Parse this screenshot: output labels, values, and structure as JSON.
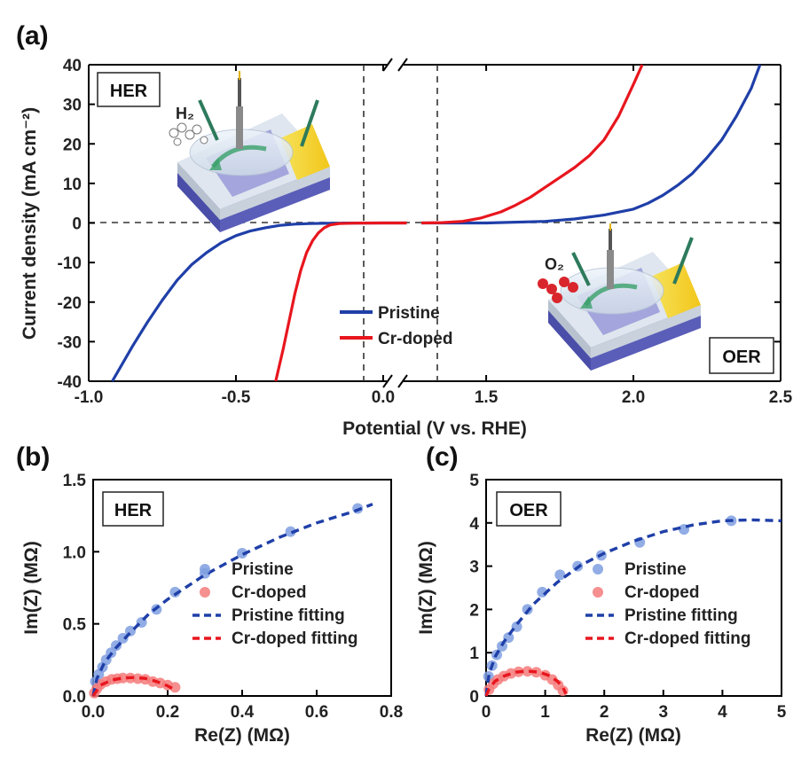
{
  "chart_data": [
    {
      "panel": "(a)",
      "type": "line",
      "xlabel": "Potential (V vs. RHE)",
      "ylabel": "Current density (mA cm⁻²)",
      "xlim": [
        -1.0,
        2.5
      ],
      "ylim": [
        -40,
        40
      ],
      "x_break": [
        0.1,
        1.25
      ],
      "xticks": [
        -1.0,
        -0.5,
        0.0,
        1.5,
        2.0,
        2.5
      ],
      "yticks": [
        -40,
        -30,
        -20,
        -10,
        0,
        10,
        20,
        30,
        40
      ],
      "xtick_labels": [
        "-1.0",
        "-0.5",
        "0.0",
        "1.5",
        "2.0",
        "2.5"
      ],
      "ytick_labels": [
        "-40",
        "-30",
        "-20",
        "-10",
        "0",
        "10",
        "20",
        "30",
        "40"
      ],
      "boxes": [
        "HER",
        "OER"
      ],
      "insets": [
        {
          "molecule": "H₂"
        },
        {
          "molecule": "O₂"
        }
      ],
      "legend": {
        "position": "bottom-center"
      },
      "series": [
        {
          "name": "Pristine",
          "color": "#1f3fa8",
          "segments": [
            {
              "x": [
                -0.92,
                -0.85,
                -0.8,
                -0.75,
                -0.7,
                -0.65,
                -0.6,
                -0.55,
                -0.5,
                -0.45,
                -0.4,
                -0.35,
                -0.3,
                -0.25,
                -0.2,
                -0.15,
                -0.1,
                0.0,
                0.08
              ],
              "y": [
                -40,
                -31,
                -25,
                -19.5,
                -14.5,
                -10.5,
                -7.5,
                -5,
                -3.2,
                -2,
                -1.2,
                -0.6,
                -0.3,
                -0.15,
                -0.08,
                -0.04,
                -0.02,
                0,
                0
              ]
            },
            {
              "x": [
                1.28,
                1.5,
                1.7,
                1.8,
                1.9,
                2.0,
                2.05,
                2.1,
                2.15,
                2.2,
                2.25,
                2.3,
                2.35,
                2.4,
                2.43
              ],
              "y": [
                0,
                0,
                0.4,
                1,
                2,
                3.5,
                5,
                7,
                9.5,
                12.5,
                16.5,
                21,
                27,
                34,
                40
              ]
            }
          ]
        },
        {
          "name": "Cr-doped",
          "color": "#e8161e",
          "segments": [
            {
              "x": [
                -0.365,
                -0.34,
                -0.32,
                -0.3,
                -0.28,
                -0.26,
                -0.24,
                -0.22,
                -0.2,
                -0.18,
                -0.15,
                -0.1,
                0.0,
                0.08
              ],
              "y": [
                -40,
                -32,
                -25,
                -18,
                -12,
                -7.5,
                -4.5,
                -2.5,
                -1.2,
                -0.5,
                -0.15,
                -0.05,
                0,
                0
              ]
            },
            {
              "x": [
                1.28,
                1.35,
                1.42,
                1.48,
                1.55,
                1.6,
                1.65,
                1.7,
                1.75,
                1.8,
                1.85,
                1.9,
                1.95,
                2.0,
                2.03
              ],
              "y": [
                0,
                0.1,
                0.4,
                1.2,
                2.8,
                4.5,
                6.5,
                9,
                11.5,
                14,
                17,
                21,
                27,
                35,
                40
              ]
            }
          ]
        }
      ]
    },
    {
      "panel": "(b)",
      "type": "scatter",
      "xlabel": "Re(Z) (MΩ)",
      "ylabel": "Im(Z) (MΩ)",
      "xlim": [
        0,
        0.8
      ],
      "ylim": [
        0,
        1.5
      ],
      "xticks": [
        0.0,
        0.2,
        0.4,
        0.6,
        0.8
      ],
      "yticks": [
        0.0,
        0.5,
        1.0,
        1.5
      ],
      "xtick_labels": [
        "0.0",
        "0.2",
        "0.4",
        "0.6",
        "0.8"
      ],
      "ytick_labels": [
        "0.0",
        "0.5",
        "1.0",
        "1.5"
      ],
      "box": "HER",
      "legend": {
        "position": "bottom-right"
      },
      "series": [
        {
          "name": "Pristine",
          "kind": "points",
          "color": "#7f9fe0",
          "x": [
            0.006,
            0.015,
            0.025,
            0.035,
            0.048,
            0.062,
            0.08,
            0.1,
            0.13,
            0.17,
            0.22,
            0.3,
            0.4,
            0.53,
            0.71
          ],
          "y": [
            0.1,
            0.15,
            0.2,
            0.25,
            0.3,
            0.35,
            0.4,
            0.45,
            0.51,
            0.6,
            0.72,
            0.85,
            0.99,
            1.14,
            1.3
          ]
        },
        {
          "name": "Cr-doped",
          "kind": "points",
          "color": "#f47b7b",
          "x": [
            0.003,
            0.01,
            0.02,
            0.035,
            0.05,
            0.065,
            0.08,
            0.1,
            0.12,
            0.14,
            0.16,
            0.18,
            0.2,
            0.22
          ],
          "y": [
            0.02,
            0.05,
            0.08,
            0.1,
            0.115,
            0.12,
            0.125,
            0.125,
            0.12,
            0.115,
            0.1,
            0.09,
            0.075,
            0.06
          ]
        },
        {
          "name": "Pristine fitting",
          "kind": "dashed",
          "color": "#1f3fa8",
          "x": [
            0.0,
            0.01,
            0.03,
            0.06,
            0.1,
            0.15,
            0.2,
            0.3,
            0.4,
            0.5,
            0.6,
            0.7,
            0.75
          ],
          "y": [
            0.0,
            0.12,
            0.23,
            0.33,
            0.44,
            0.57,
            0.67,
            0.84,
            0.98,
            1.1,
            1.2,
            1.28,
            1.33
          ]
        },
        {
          "name": "Cr-doped fitting",
          "kind": "dashed",
          "color": "#e8161e",
          "x": [
            0.0,
            0.02,
            0.05,
            0.08,
            0.11,
            0.14,
            0.17,
            0.2,
            0.22
          ],
          "y": [
            0.0,
            0.075,
            0.11,
            0.125,
            0.128,
            0.122,
            0.1,
            0.07,
            0.04
          ]
        }
      ]
    },
    {
      "panel": "(c)",
      "type": "scatter",
      "xlabel": "Re(Z) (MΩ)",
      "ylabel": "Im(Z) (MΩ)",
      "xlim": [
        0,
        5
      ],
      "ylim": [
        0,
        5
      ],
      "xticks": [
        0,
        1,
        2,
        3,
        4,
        5
      ],
      "yticks": [
        0,
        1,
        2,
        3,
        4,
        5
      ],
      "xtick_labels": [
        "0",
        "1",
        "2",
        "3",
        "4",
        "5"
      ],
      "ytick_labels": [
        "0",
        "1",
        "2",
        "3",
        "4",
        "5"
      ],
      "box": "OER",
      "legend": {
        "position": "bottom-right"
      },
      "series": [
        {
          "name": "Pristine",
          "kind": "points",
          "color": "#7f9fe0",
          "x": [
            0.04,
            0.1,
            0.18,
            0.27,
            0.38,
            0.52,
            0.7,
            0.95,
            1.25,
            1.55,
            1.95,
            2.6,
            3.35,
            4.15
          ],
          "y": [
            0.45,
            0.7,
            0.95,
            1.15,
            1.35,
            1.6,
            2.0,
            2.4,
            2.8,
            3.0,
            3.25,
            3.55,
            3.85,
            4.05
          ]
        },
        {
          "name": "Cr-doped",
          "kind": "points",
          "color": "#f47b7b",
          "x": [
            0.05,
            0.12,
            0.2,
            0.3,
            0.42,
            0.55,
            0.7,
            0.85,
            1.0,
            1.12,
            1.22,
            1.3
          ],
          "y": [
            0.15,
            0.28,
            0.38,
            0.46,
            0.52,
            0.56,
            0.57,
            0.55,
            0.48,
            0.38,
            0.25,
            0.12
          ]
        },
        {
          "name": "Pristine fitting",
          "kind": "dashed",
          "color": "#1f3fa8",
          "x": [
            0.0,
            0.05,
            0.15,
            0.3,
            0.5,
            0.8,
            1.2,
            1.6,
            2.0,
            2.5,
            3.0,
            3.5,
            4.0,
            4.5,
            5.0
          ],
          "y": [
            0.0,
            0.5,
            0.9,
            1.25,
            1.62,
            2.12,
            2.62,
            3.02,
            3.3,
            3.58,
            3.8,
            3.95,
            4.05,
            4.07,
            4.05
          ]
        },
        {
          "name": "Cr-doped fitting",
          "kind": "dashed",
          "color": "#e8161e",
          "x": [
            0.0,
            0.05,
            0.15,
            0.3,
            0.5,
            0.7,
            0.9,
            1.05,
            1.2,
            1.3,
            1.35
          ],
          "y": [
            0.0,
            0.16,
            0.34,
            0.46,
            0.55,
            0.575,
            0.55,
            0.48,
            0.35,
            0.2,
            0.05
          ]
        }
      ]
    }
  ]
}
